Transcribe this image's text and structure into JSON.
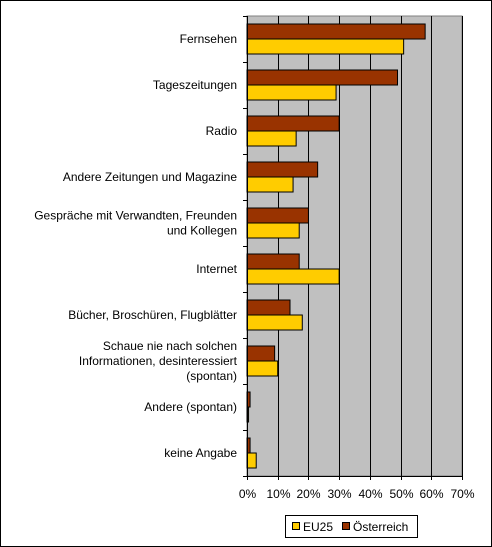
{
  "chart_data": {
    "type": "bar",
    "orientation": "horizontal",
    "categories": [
      [
        "Fernsehen"
      ],
      [
        "Tageszeitungen"
      ],
      [
        "Radio"
      ],
      [
        "Andere Zeitungen und Magazine"
      ],
      [
        "Gespräche mit Verwandten, Freunden",
        "und Kollegen"
      ],
      [
        "Internet"
      ],
      [
        "Bücher, Broschüren, Flugblätter"
      ],
      [
        "Schaue nie nach solchen",
        "Informationen, desinteressiert",
        "(spontan)"
      ],
      [
        "Andere (spontan)"
      ],
      [
        "keine Angabe"
      ]
    ],
    "series": [
      {
        "name": "EU25",
        "color": "#ffcc00",
        "values": [
          51,
          29,
          16,
          15,
          17,
          30,
          18,
          10,
          0.5,
          3
        ]
      },
      {
        "name": "Österreich",
        "color": "#993300",
        "values": [
          58,
          49,
          30,
          23,
          20,
          17,
          14,
          9,
          1,
          1
        ]
      }
    ],
    "xlim": [
      0,
      70
    ],
    "xticks": [
      "0%",
      "10%",
      "20%",
      "30%",
      "40%",
      "50%",
      "60%",
      "70%"
    ],
    "plot_background": "#c0c0c0",
    "grid": true,
    "legend_position": "bottom-right"
  }
}
